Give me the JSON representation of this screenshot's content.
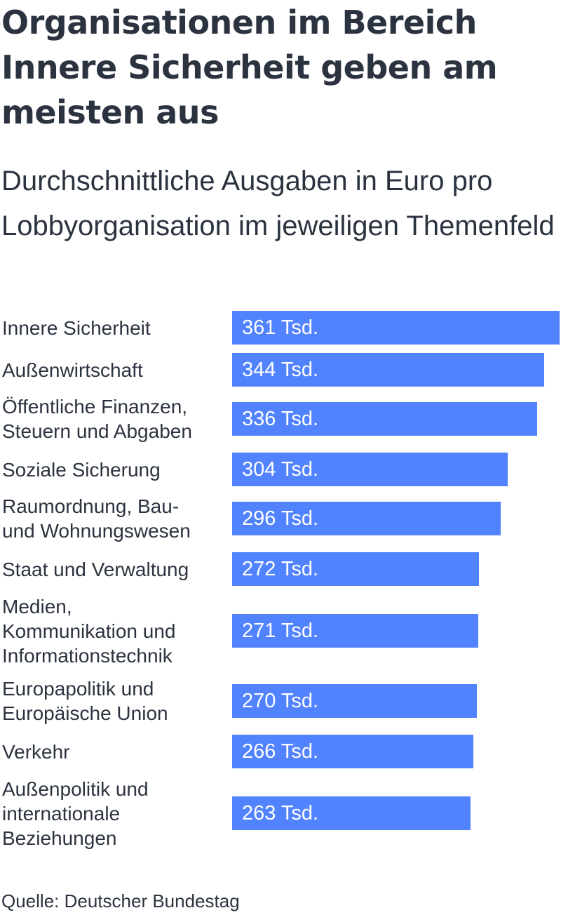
{
  "header": {
    "title": "Organisationen im Bereich Innere Sicherheit geben am meisten aus",
    "subtitle": "Durchschnittliche Ausgaben in Euro pro Lobbyorganisation im jeweiligen Themenfeld"
  },
  "source": "Quelle: Deutscher Bundestag",
  "colors": {
    "bar": "#5283ff",
    "text": "#2c3340",
    "bar_text": "#ffffff"
  },
  "chart_data": {
    "type": "bar",
    "orientation": "horizontal",
    "title": "Organisationen im Bereich Innere Sicherheit geben am meisten aus",
    "subtitle": "Durchschnittliche Ausgaben in Euro pro Lobbyorganisation im jeweiligen Themenfeld",
    "categories": [
      "Innere Sicherheit",
      "Außenwirtschaft",
      "Öffentliche Finanzen,\nSteuern und Abgaben",
      "Soziale Sicherung",
      "Raumordnung, Bau-\nund Wohnungswesen",
      "Staat und Verwaltung",
      "Medien,\nKommunikation und\nInformationstechnik",
      "Europapolitik und\nEuropäische Union",
      "Verkehr",
      "Außenpolitik und\ninternationale\nBeziehungen"
    ],
    "values": [
      361,
      344,
      336,
      304,
      296,
      272,
      271,
      270,
      266,
      263
    ],
    "data_labels": [
      "361 Tsd.",
      "344 Tsd.",
      "336 Tsd.",
      "304 Tsd.",
      "296 Tsd.",
      "272 Tsd.",
      "271 Tsd.",
      "270 Tsd.",
      "266 Tsd.",
      "263 Tsd."
    ],
    "unit": "Tsd.",
    "xlim": [
      0,
      361
    ],
    "grid": false,
    "legend": "none"
  }
}
